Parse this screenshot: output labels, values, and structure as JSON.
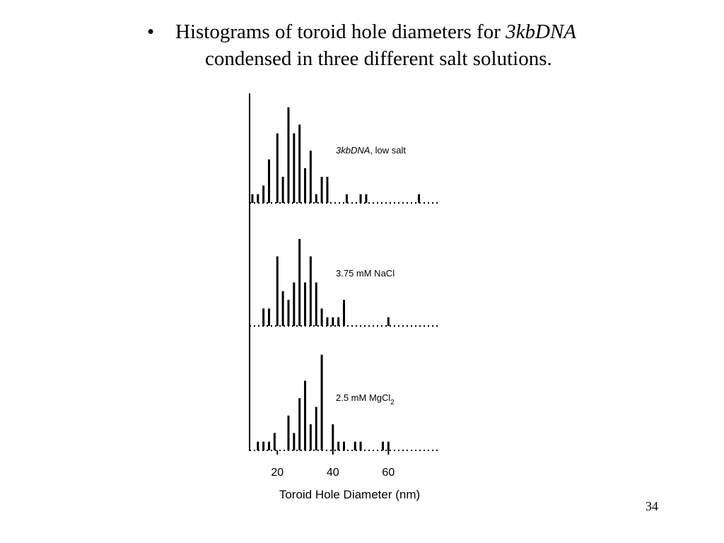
{
  "slide": {
    "bullet_symbol": "•",
    "bullet_line1_text": "Histograms of toroid hole diameters for ",
    "bullet_line1_italic": "3kbDNA",
    "bullet_line2_text": "condensed in three different salt solutions.",
    "page_number": "34"
  },
  "chart_data": {
    "type": "bar",
    "xlabel": "Toroid Hole Diameter (nm)",
    "xlim": [
      10,
      78
    ],
    "xticks": [
      "20",
      "40",
      "60"
    ],
    "grid": false,
    "panels": [
      {
        "label": "3kbDNA, low salt",
        "label_italic_part": "3kbDNA",
        "label_rest": ", low salt",
        "x": [
          11,
          13,
          15,
          17,
          20,
          22,
          24,
          26,
          28,
          30,
          32,
          34,
          36,
          38,
          45,
          50,
          52,
          71
        ],
        "values": [
          1,
          1,
          2,
          5,
          8,
          3,
          11,
          8,
          9,
          4,
          6,
          1,
          3,
          3,
          1,
          1,
          1,
          1
        ]
      },
      {
        "label": "3.75 mM NaCl",
        "x": [
          15,
          17,
          20,
          22,
          24,
          26,
          28,
          30,
          32,
          34,
          36,
          38,
          40,
          42,
          44,
          60
        ],
        "values": [
          2,
          2,
          8,
          4,
          3,
          5,
          10,
          5,
          8,
          5,
          2,
          1,
          1,
          1,
          3,
          1
        ]
      },
      {
        "label": "2.5 mM MgCl",
        "label_subscript": "2",
        "x": [
          13,
          15,
          17,
          19,
          24,
          26,
          28,
          30,
          32,
          34,
          36,
          40,
          42,
          44,
          48,
          50,
          58,
          60
        ],
        "values": [
          1,
          1,
          1,
          2,
          4,
          2,
          6,
          8,
          3,
          5,
          11,
          3,
          1,
          1,
          1,
          1,
          1,
          1
        ]
      }
    ]
  }
}
